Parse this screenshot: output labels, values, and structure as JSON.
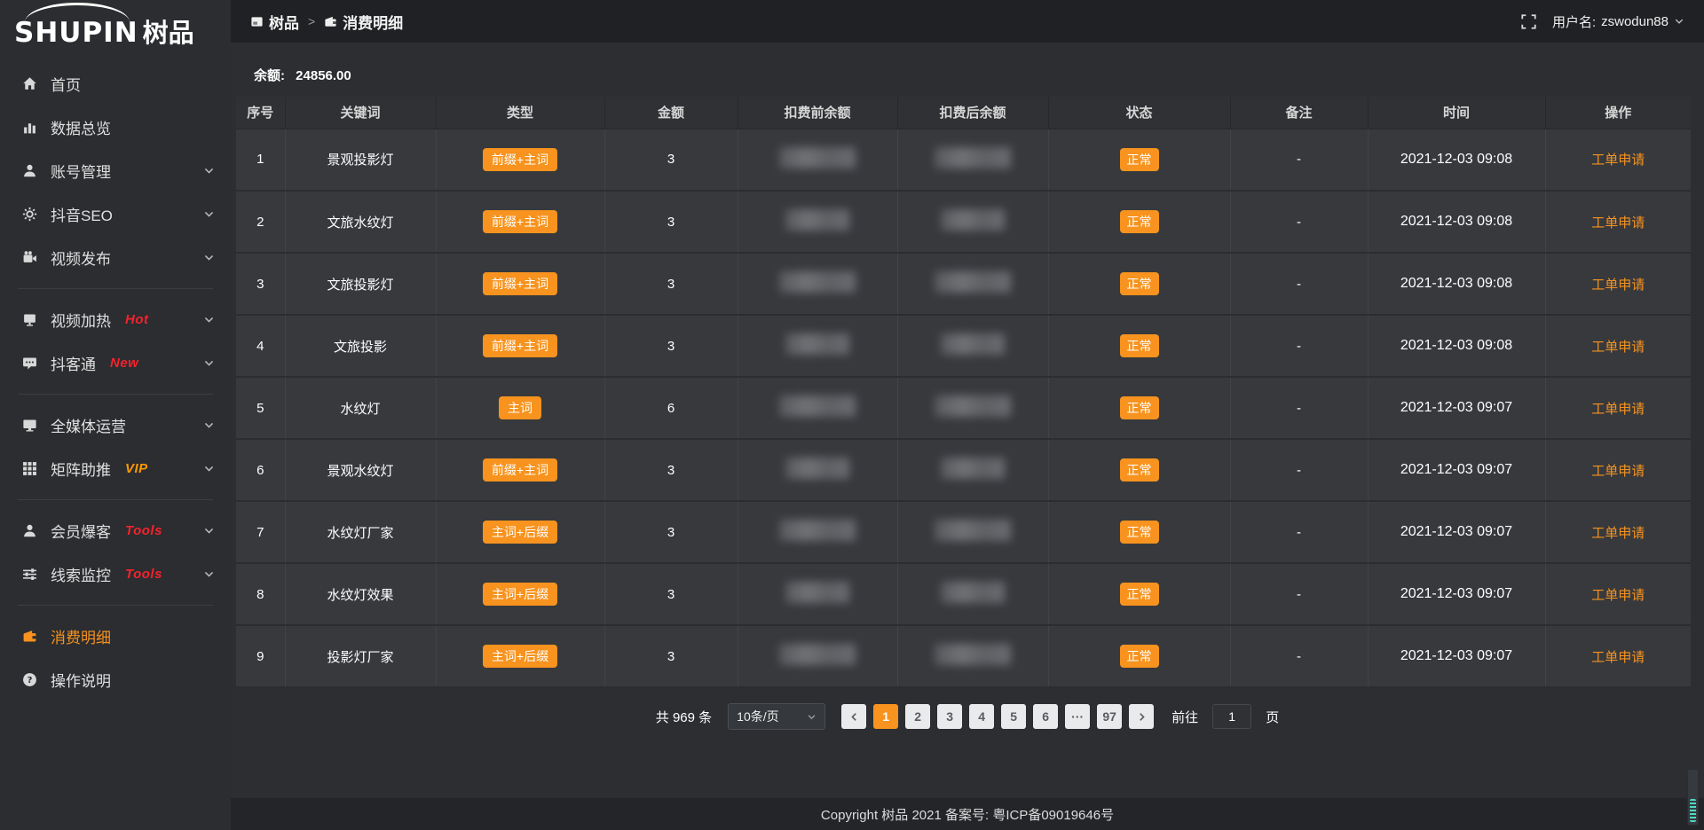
{
  "colors": {
    "accent": "#f7931e",
    "red": "#f5222d",
    "vip": "#ff9800"
  },
  "app": {
    "logo_en": "SHUPIN",
    "logo_cn": "树品"
  },
  "header": {
    "breadcrumb": [
      {
        "label": "树品",
        "icon": "app-icon"
      },
      {
        "label": "消费明细",
        "icon": "wallet-icon"
      }
    ],
    "separator": ">",
    "username_label": "用户名:",
    "username": "zswodun88"
  },
  "sidebar": {
    "items": [
      {
        "id": "home",
        "label": "首页",
        "icon": "home-icon",
        "chevron": false
      },
      {
        "id": "data-overview",
        "label": "数据总览",
        "icon": "bar-chart-icon",
        "chevron": false
      },
      {
        "id": "account",
        "label": "账号管理",
        "icon": "user-icon",
        "chevron": true
      },
      {
        "id": "douyin-seo",
        "label": "抖音SEO",
        "icon": "gear-icon",
        "chevron": true
      },
      {
        "id": "video-publish",
        "label": "视频发布",
        "icon": "video-camera-icon",
        "chevron": true
      },
      {
        "divider": true
      },
      {
        "id": "video-heat",
        "label": "视频加热",
        "icon": "screen-icon",
        "badge": "Hot",
        "badge_style": "red",
        "chevron": true
      },
      {
        "id": "douketong",
        "label": "抖客通",
        "icon": "chat-icon",
        "badge": "New",
        "badge_style": "red",
        "chevron": true
      },
      {
        "divider": true
      },
      {
        "id": "media-operation",
        "label": "全媒体运营",
        "icon": "monitor-icon",
        "chevron": true
      },
      {
        "id": "matrix-boost",
        "label": "矩阵助推",
        "icon": "grid-icon",
        "badge": "VIP",
        "badge_style": "orange",
        "chevron": true
      },
      {
        "divider": true
      },
      {
        "id": "member-burst",
        "label": "会员爆客",
        "icon": "member-icon",
        "badge": "Tools",
        "badge_style": "red",
        "chevron": true
      },
      {
        "id": "clue-monitor",
        "label": "线索监控",
        "icon": "sliders-icon",
        "badge": "Tools",
        "badge_style": "red",
        "chevron": true
      },
      {
        "divider": true
      },
      {
        "id": "consume-detail",
        "label": "消费明细",
        "icon": "wallet-icon",
        "active": true,
        "chevron": false
      },
      {
        "id": "help",
        "label": "操作说明",
        "icon": "question-icon",
        "chevron": false
      }
    ]
  },
  "balance": {
    "label": "余额:",
    "value": "24856.00"
  },
  "table": {
    "columns": [
      "序号",
      "关键词",
      "类型",
      "金额",
      "扣费前余额",
      "扣费后余额",
      "状态",
      "备注",
      "时间",
      "操作"
    ],
    "rows": [
      {
        "index": "1",
        "keyword": "景观投影灯",
        "type": "前缀+主词",
        "amount": "3",
        "status": "正常",
        "remark": "-",
        "time": "2021-12-03 09:08",
        "action": "工单申请"
      },
      {
        "index": "2",
        "keyword": "文旅水纹灯",
        "type": "前缀+主词",
        "amount": "3",
        "status": "正常",
        "remark": "-",
        "time": "2021-12-03 09:08",
        "action": "工单申请"
      },
      {
        "index": "3",
        "keyword": "文旅投影灯",
        "type": "前缀+主词",
        "amount": "3",
        "status": "正常",
        "remark": "-",
        "time": "2021-12-03 09:08",
        "action": "工单申请"
      },
      {
        "index": "4",
        "keyword": "文旅投影",
        "type": "前缀+主词",
        "amount": "3",
        "status": "正常",
        "remark": "-",
        "time": "2021-12-03 09:08",
        "action": "工单申请"
      },
      {
        "index": "5",
        "keyword": "水纹灯",
        "type": "主词",
        "amount": "6",
        "status": "正常",
        "remark": "-",
        "time": "2021-12-03 09:07",
        "action": "工单申请"
      },
      {
        "index": "6",
        "keyword": "景观水纹灯",
        "type": "前缀+主词",
        "amount": "3",
        "status": "正常",
        "remark": "-",
        "time": "2021-12-03 09:07",
        "action": "工单申请"
      },
      {
        "index": "7",
        "keyword": "水纹灯厂家",
        "type": "主词+后缀",
        "amount": "3",
        "status": "正常",
        "remark": "-",
        "time": "2021-12-03 09:07",
        "action": "工单申请"
      },
      {
        "index": "8",
        "keyword": "水纹灯效果",
        "type": "主词+后缀",
        "amount": "3",
        "status": "正常",
        "remark": "-",
        "time": "2021-12-03 09:07",
        "action": "工单申请"
      },
      {
        "index": "9",
        "keyword": "投影灯厂家",
        "type": "主词+后缀",
        "amount": "3",
        "status": "正常",
        "remark": "-",
        "time": "2021-12-03 09:07",
        "action": "工单申请"
      }
    ]
  },
  "pagination": {
    "total": "共 969 条",
    "page_size": "10条/页",
    "pages": [
      "1",
      "2",
      "3",
      "4",
      "5",
      "6",
      "···",
      "97"
    ],
    "active_page": "1",
    "goto_label": "前往",
    "goto_value": "1",
    "page_unit": "页"
  },
  "footer": {
    "copyright": "Copyright 树品 2021 备案号:  粤ICP备09019646号"
  }
}
